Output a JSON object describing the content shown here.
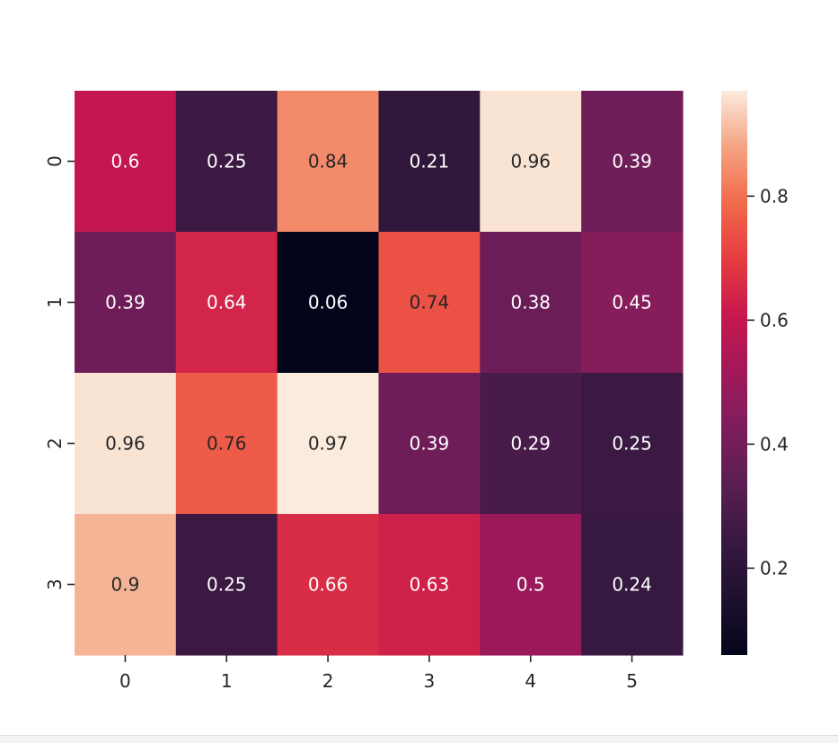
{
  "chart_data": {
    "type": "heatmap",
    "title": "",
    "xlabel": "",
    "ylabel": "",
    "x_categories": [
      "0",
      "1",
      "2",
      "3",
      "4",
      "5"
    ],
    "y_categories": [
      "0",
      "1",
      "2",
      "3"
    ],
    "values": [
      [
        0.6,
        0.25,
        0.84,
        0.21,
        0.96,
        0.39
      ],
      [
        0.39,
        0.64,
        0.06,
        0.74,
        0.38,
        0.45
      ],
      [
        0.96,
        0.76,
        0.97,
        0.39,
        0.29,
        0.25
      ],
      [
        0.9,
        0.25,
        0.66,
        0.63,
        0.5,
        0.24
      ]
    ],
    "value_labels": [
      [
        "0.6",
        "0.25",
        "0.84",
        "0.21",
        "0.96",
        "0.39"
      ],
      [
        "0.39",
        "0.64",
        "0.06",
        "0.74",
        "0.38",
        "0.45"
      ],
      [
        "0.96",
        "0.76",
        "0.97",
        "0.39",
        "0.29",
        "0.25"
      ],
      [
        "0.9",
        "0.25",
        "0.66",
        "0.63",
        "0.5",
        "0.24"
      ]
    ],
    "colorbar": {
      "vmin": 0.06,
      "vmax": 0.97,
      "ticks": [
        0.2,
        0.4,
        0.6,
        0.8
      ],
      "tick_labels": [
        "0.2",
        "0.4",
        "0.6",
        "0.8"
      ]
    },
    "colormap": "rocket",
    "grid": false,
    "legend": "colorbar-right",
    "colors": {
      "text_light": "#ffffff",
      "text_dark": "#262626",
      "axis_text": "#262626",
      "tick_color": "#262626"
    }
  }
}
